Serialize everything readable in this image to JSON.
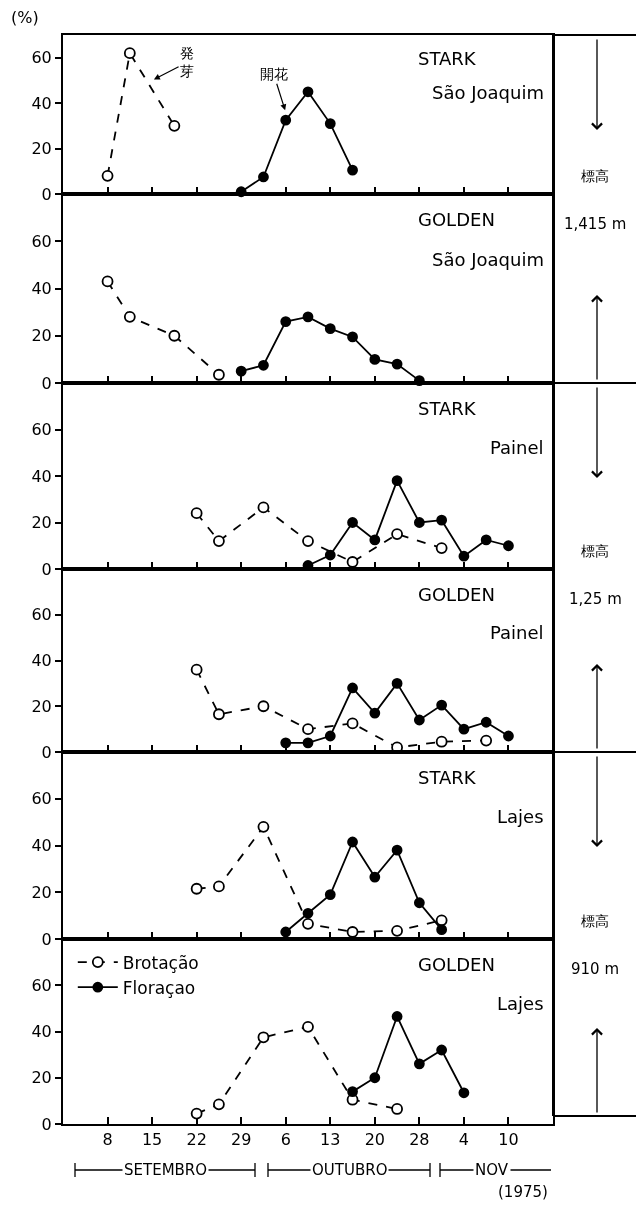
{
  "chart_data": [
    {
      "type": "line",
      "title": "STARK",
      "subtitle": "São Joaquim",
      "ylabel": "(%)",
      "categories": [
        "8",
        null,
        "15",
        null,
        "22",
        null,
        "29",
        null,
        "6",
        null,
        "13",
        null,
        "20",
        null,
        "28",
        null,
        "4",
        null,
        "10"
      ],
      "ylim": [
        0,
        70
      ],
      "yticks": [
        0,
        20,
        40,
        60
      ],
      "tick_labels": "y",
      "grid": false,
      "legend": false,
      "series": [
        {
          "color": "#000000",
          "marker": "circle",
          "line_style": "dashed",
          "values": [
            8,
            62,
            null,
            30,
            null,
            null,
            null,
            null,
            null,
            null,
            null,
            null,
            null,
            null,
            null,
            null,
            null,
            null,
            null
          ]
        },
        {
          "color": "#000000",
          "marker": "circle",
          "line_style": "solid",
          "values": [
            null,
            null,
            null,
            null,
            null,
            null,
            1,
            7.5,
            32.5,
            45,
            31,
            10.5,
            null,
            null,
            null,
            null,
            null,
            null,
            null
          ]
        }
      ],
      "annotations": [
        {
          "text": "発芽",
          "x": "15",
          "y": 50
        },
        {
          "text": "開花",
          "x": "6",
          "y": 36
        },
        "標高",
        "1,415 m"
      ]
    },
    {
      "type": "line",
      "title": "GOLDEN",
      "subtitle": "São Joaquim",
      "categories": [
        "8",
        null,
        "15",
        null,
        "22",
        null,
        "29",
        null,
        "6",
        null,
        "13",
        null,
        "20",
        null,
        "28",
        null,
        "4",
        null,
        "10"
      ],
      "ylim": [
        0,
        80
      ],
      "yticks": [
        0,
        20,
        40,
        60
      ],
      "tick_labels": "y",
      "grid": false,
      "legend": false,
      "series": [
        {
          "color": "#000000",
          "marker": "circle",
          "line_style": "dashed",
          "values": [
            43,
            28,
            null,
            20,
            null,
            3.5,
            null,
            null,
            null,
            null,
            null,
            null,
            null,
            null,
            null,
            null,
            null,
            null,
            null
          ]
        },
        {
          "color": "#000000",
          "marker": "circle",
          "line_style": "solid",
          "values": [
            null,
            null,
            null,
            null,
            null,
            null,
            5,
            7.5,
            26,
            28,
            23,
            19.5,
            10,
            8,
            1,
            null,
            null,
            null,
            null
          ]
        }
      ]
    },
    {
      "type": "line",
      "title": "STARK",
      "subtitle": "Painel",
      "categories": [
        "8",
        null,
        "15",
        null,
        "22",
        null,
        "29",
        null,
        "6",
        null,
        "13",
        null,
        "20",
        null,
        "28",
        null,
        "4",
        null,
        "10"
      ],
      "ylim": [
        0,
        80
      ],
      "yticks": [
        0,
        20,
        40,
        60
      ],
      "tick_labels": "y",
      "grid": false,
      "legend": false,
      "series": [
        {
          "color": "#000000",
          "marker": "circle",
          "line_style": "dashed",
          "values": [
            null,
            null,
            null,
            null,
            24,
            12,
            null,
            26.5,
            null,
            12,
            null,
            3,
            null,
            15,
            null,
            9,
            null,
            null,
            null
          ]
        },
        {
          "color": "#000000",
          "marker": "circle",
          "line_style": "solid",
          "values": [
            null,
            null,
            null,
            null,
            null,
            null,
            null,
            null,
            null,
            1.5,
            6,
            20,
            12.5,
            38,
            20,
            21,
            5.5,
            12.5,
            10
          ]
        }
      ],
      "annotations": [
        "標高",
        "1,25 m"
      ]
    },
    {
      "type": "line",
      "title": "GOLDEN",
      "subtitle": "Painel",
      "categories": [
        "8",
        null,
        "15",
        null,
        "22",
        null,
        "29",
        null,
        "6",
        null,
        "13",
        null,
        "20",
        null,
        "28",
        null,
        "4",
        null,
        "10"
      ],
      "ylim": [
        0,
        80
      ],
      "yticks": [
        0,
        20,
        40,
        60
      ],
      "tick_labels": "y",
      "grid": false,
      "legend": false,
      "series": [
        {
          "color": "#000000",
          "marker": "circle",
          "line_style": "dashed",
          "values": [
            null,
            null,
            null,
            null,
            36,
            16.5,
            null,
            20,
            null,
            10,
            null,
            12.5,
            null,
            2,
            null,
            4.5,
            null,
            5,
            null
          ]
        },
        {
          "color": "#000000",
          "marker": "circle",
          "line_style": "solid",
          "values": [
            null,
            null,
            null,
            null,
            null,
            null,
            null,
            null,
            4,
            4,
            7,
            28,
            17,
            30,
            14,
            20.5,
            10,
            13,
            7
          ]
        }
      ]
    },
    {
      "type": "line",
      "title": "STARK",
      "subtitle": "Lajes",
      "categories": [
        "8",
        null,
        "15",
        null,
        "22",
        null,
        "29",
        null,
        "6",
        null,
        "13",
        null,
        "20",
        null,
        "28",
        null,
        "4",
        null,
        "10"
      ],
      "ylim": [
        0,
        80
      ],
      "yticks": [
        0,
        20,
        40,
        60
      ],
      "tick_labels": "y",
      "grid": false,
      "legend": false,
      "series": [
        {
          "color": "#000000",
          "marker": "circle",
          "line_style": "dashed",
          "values": [
            null,
            null,
            null,
            null,
            21.5,
            22.5,
            null,
            48,
            null,
            6.5,
            null,
            3,
            null,
            3.5,
            null,
            8,
            null,
            null,
            null
          ]
        },
        {
          "color": "#000000",
          "marker": "circle",
          "line_style": "solid",
          "values": [
            null,
            null,
            null,
            null,
            null,
            null,
            null,
            null,
            3,
            11,
            19,
            41.5,
            26.5,
            38,
            15.5,
            4,
            null,
            null,
            null
          ]
        }
      ],
      "annotations": [
        "標高",
        "910 m"
      ]
    },
    {
      "type": "line",
      "title": "GOLDEN",
      "subtitle": "Lajes",
      "categories": [
        "8",
        null,
        "15",
        null,
        "22",
        null,
        "29",
        null,
        "6",
        null,
        "13",
        null,
        "20",
        null,
        "28",
        null,
        "4",
        null,
        "10"
      ],
      "ylim": [
        0,
        80
      ],
      "yticks": [
        0,
        20,
        40,
        60
      ],
      "grid": false,
      "legend": "top left",
      "series": [
        {
          "name": "Brotação",
          "color": "#000000",
          "marker": "circle",
          "line_style": "dashed",
          "values": [
            null,
            null,
            null,
            null,
            4.5,
            8.5,
            null,
            37.5,
            null,
            42,
            null,
            10.5,
            null,
            6.5,
            null,
            null,
            null,
            null,
            null
          ]
        },
        {
          "name": "Floraçao",
          "color": "#000000",
          "marker": "circle",
          "line_style": "solid",
          "values": [
            null,
            null,
            null,
            null,
            null,
            null,
            null,
            null,
            null,
            null,
            null,
            14,
            20,
            46.5,
            26,
            32,
            13.5,
            null,
            null
          ]
        }
      ],
      "annotations": [
        "SETEMBRO",
        "OUTUBRO",
        "NOV",
        "(1975)"
      ]
    }
  ]
}
